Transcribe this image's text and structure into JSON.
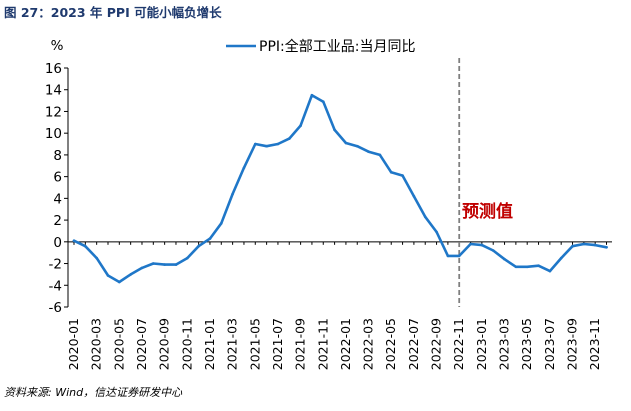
{
  "figure": {
    "title": "图 27：2023 年 PPI 可能小幅负增长",
    "source": "资料来源: Wind，信达证券研发中心"
  },
  "chart_data": {
    "type": "line",
    "title": "2023 年 PPI 可能小幅负增长",
    "ylabel": "%",
    "xlabel": "",
    "ylim": [
      -6,
      16
    ],
    "yticks": [
      -6,
      -4,
      -2,
      0,
      2,
      4,
      6,
      8,
      10,
      12,
      14,
      16
    ],
    "x": [
      "2020-01",
      "2020-02",
      "2020-03",
      "2020-04",
      "2020-05",
      "2020-06",
      "2020-07",
      "2020-08",
      "2020-09",
      "2020-10",
      "2020-11",
      "2020-12",
      "2021-01",
      "2021-02",
      "2021-03",
      "2021-04",
      "2021-05",
      "2021-06",
      "2021-07",
      "2021-08",
      "2021-09",
      "2021-10",
      "2021-11",
      "2021-12",
      "2022-01",
      "2022-02",
      "2022-03",
      "2022-04",
      "2022-05",
      "2022-06",
      "2022-07",
      "2022-08",
      "2022-09",
      "2022-10",
      "2022-11",
      "2022-12",
      "2023-01",
      "2023-02",
      "2023-03",
      "2023-04",
      "2023-05",
      "2023-06",
      "2023-07",
      "2023-08",
      "2023-09",
      "2023-10",
      "2023-11",
      "2023-12"
    ],
    "xtick_labels": [
      "2020-01",
      "2020-03",
      "2020-05",
      "2020-07",
      "2020-09",
      "2020-11",
      "2021-01",
      "2021-03",
      "2021-05",
      "2021-07",
      "2021-09",
      "2021-11",
      "2022-01",
      "2022-03",
      "2022-05",
      "2022-07",
      "2022-09",
      "2022-11",
      "2023-01",
      "2023-03",
      "2023-05",
      "2023-07",
      "2023-09",
      "2023-11"
    ],
    "series": [
      {
        "name": "PPI:全部工业品:当月同比",
        "color": "#1f77c8",
        "values": [
          0.1,
          -0.4,
          -1.5,
          -3.1,
          -3.7,
          -3.0,
          -2.4,
          -2.0,
          -2.1,
          -2.1,
          -1.5,
          -0.4,
          0.3,
          1.7,
          4.4,
          6.8,
          9.0,
          8.8,
          9.0,
          9.5,
          10.7,
          13.5,
          12.9,
          10.3,
          9.1,
          8.8,
          8.3,
          8.0,
          6.4,
          6.1,
          4.2,
          2.3,
          0.9,
          -1.3,
          -1.3,
          -0.2,
          -0.3,
          -0.8,
          -1.6,
          -2.3,
          -2.3,
          -2.2,
          -2.7,
          -1.5,
          -0.4,
          -0.2,
          -0.3,
          -0.5
        ]
      }
    ],
    "forecast_divider": {
      "at": "2022-11",
      "color": "#7f7f7f",
      "label": "预测值",
      "label_color": "#c00000"
    },
    "legend": "top-center",
    "grid": false
  }
}
